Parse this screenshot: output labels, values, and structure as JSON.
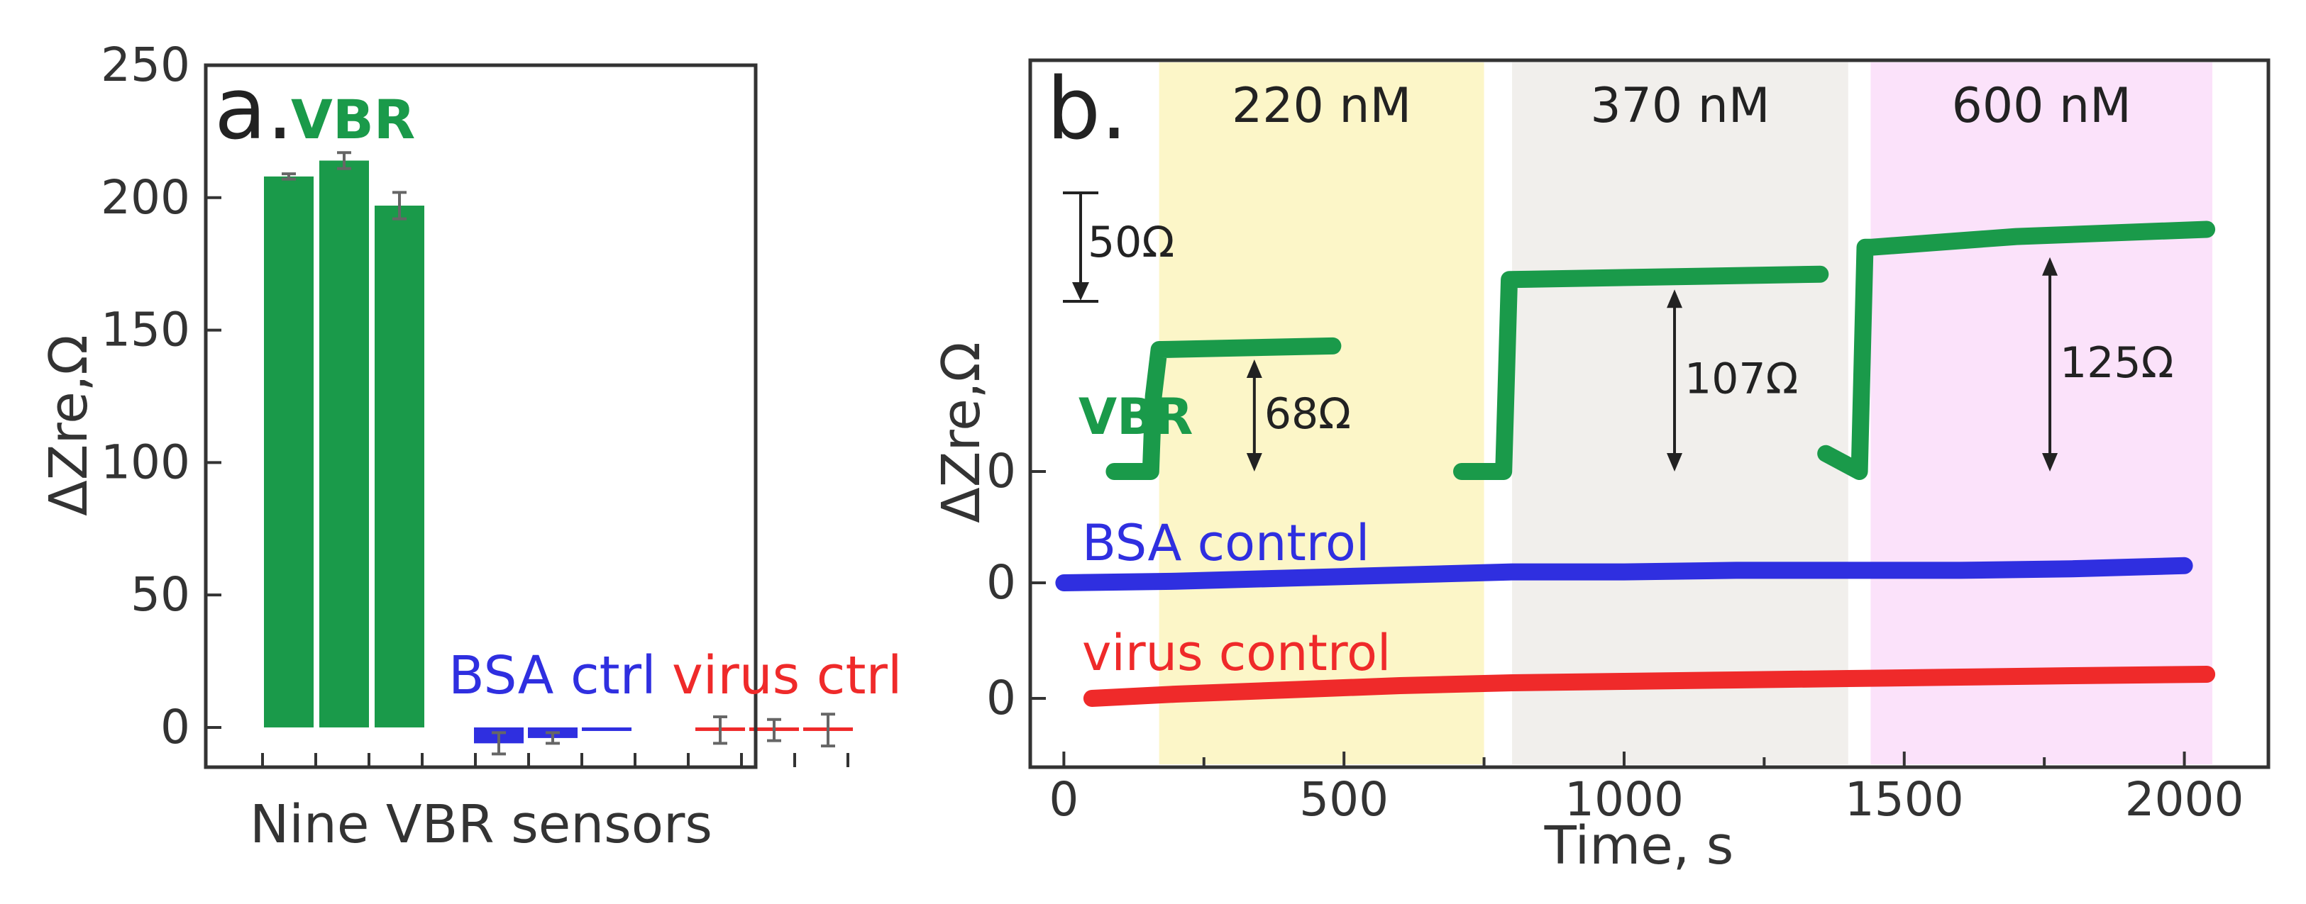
{
  "colors": {
    "green": "#1a9a4a",
    "blue": "#2f2fe0",
    "red": "#ef2a2a",
    "band_yellow": "#fcf6c8",
    "band_gray": "#f1efec",
    "band_pink": "#fbe2fa",
    "axis": "#333333"
  },
  "chart_data": [
    {
      "type": "bar",
      "panel_label": "a.",
      "xlabel": "Nine VBR sensors",
      "ylabel": "ΔZre,Ω",
      "ylim": [
        -15,
        250
      ],
      "yticks": [
        0,
        50,
        100,
        150,
        200,
        250
      ],
      "group_labels": [
        "VBR",
        "BSA ctrl",
        "virus ctrl"
      ],
      "series": [
        {
          "name": "VBR",
          "color": "green",
          "values": [
            208,
            214,
            197
          ],
          "errors": [
            1,
            3,
            5
          ]
        },
        {
          "name": "BSA ctrl",
          "color": "blue",
          "values": [
            -6,
            -4,
            -1
          ],
          "errors": [
            4,
            2,
            0
          ]
        },
        {
          "name": "virus ctrl",
          "color": "red",
          "values": [
            -1,
            -1,
            -1
          ],
          "errors": [
            5,
            4,
            6
          ]
        }
      ]
    },
    {
      "type": "line",
      "panel_label": "b.",
      "xlabel": "Time, s",
      "ylabel": "ΔZre,Ω",
      "xlim": [
        -60,
        2150
      ],
      "xticks": [
        0,
        500,
        1000,
        1500,
        2000
      ],
      "ytick_label": "0",
      "bands": [
        {
          "label": "220 nM",
          "start": 170,
          "end": 750,
          "color": "band_yellow"
        },
        {
          "label": "370 nM",
          "start": 800,
          "end": 1400,
          "color": "band_gray"
        },
        {
          "label": "600 nM",
          "start": 1440,
          "end": 2050,
          "color": "band_pink"
        }
      ],
      "scale_bar_label": "50Ω",
      "series": [
        {
          "name": "VBR",
          "label": "VBR",
          "color": "green",
          "segments": [
            {
              "x": [
                90,
                155,
                160,
                170,
                175,
                480
              ],
              "y": [
                0,
                0,
                42,
                68,
                68,
                70
              ]
            },
            {
              "x": [
                710,
                785,
                795,
                1350
              ],
              "y": [
                0,
                0,
                107,
                110
              ]
            },
            {
              "x": [
                1360,
                1420,
                1430,
                1440,
                1700,
                2040
              ],
              "y": [
                10,
                0,
                125,
                125,
                131,
                135
              ]
            }
          ],
          "annotations": [
            {
              "label": "68Ω",
              "x": 340,
              "y0": 0,
              "y1": 68
            },
            {
              "label": "107Ω",
              "x": 1090,
              "y0": 0,
              "y1": 107
            },
            {
              "label": "125Ω",
              "x": 1760,
              "y0": 0,
              "y1": 125
            }
          ]
        },
        {
          "name": "BSA control",
          "label": "BSA control",
          "color": "blue",
          "x": [
            0,
            200,
            400,
            600,
            800,
            1000,
            1200,
            1400,
            1600,
            1800,
            2000
          ],
          "y": [
            0,
            1,
            3,
            5,
            7,
            7,
            8,
            8,
            8,
            9,
            11
          ]
        },
        {
          "name": "virus control",
          "label": "virus control",
          "color": "red",
          "x": [
            50,
            200,
            400,
            600,
            800,
            1000,
            1200,
            1400,
            1600,
            1800,
            2040
          ],
          "y": [
            0,
            3,
            6,
            9,
            11,
            12,
            13,
            14,
            15,
            16,
            17
          ]
        }
      ]
    }
  ]
}
